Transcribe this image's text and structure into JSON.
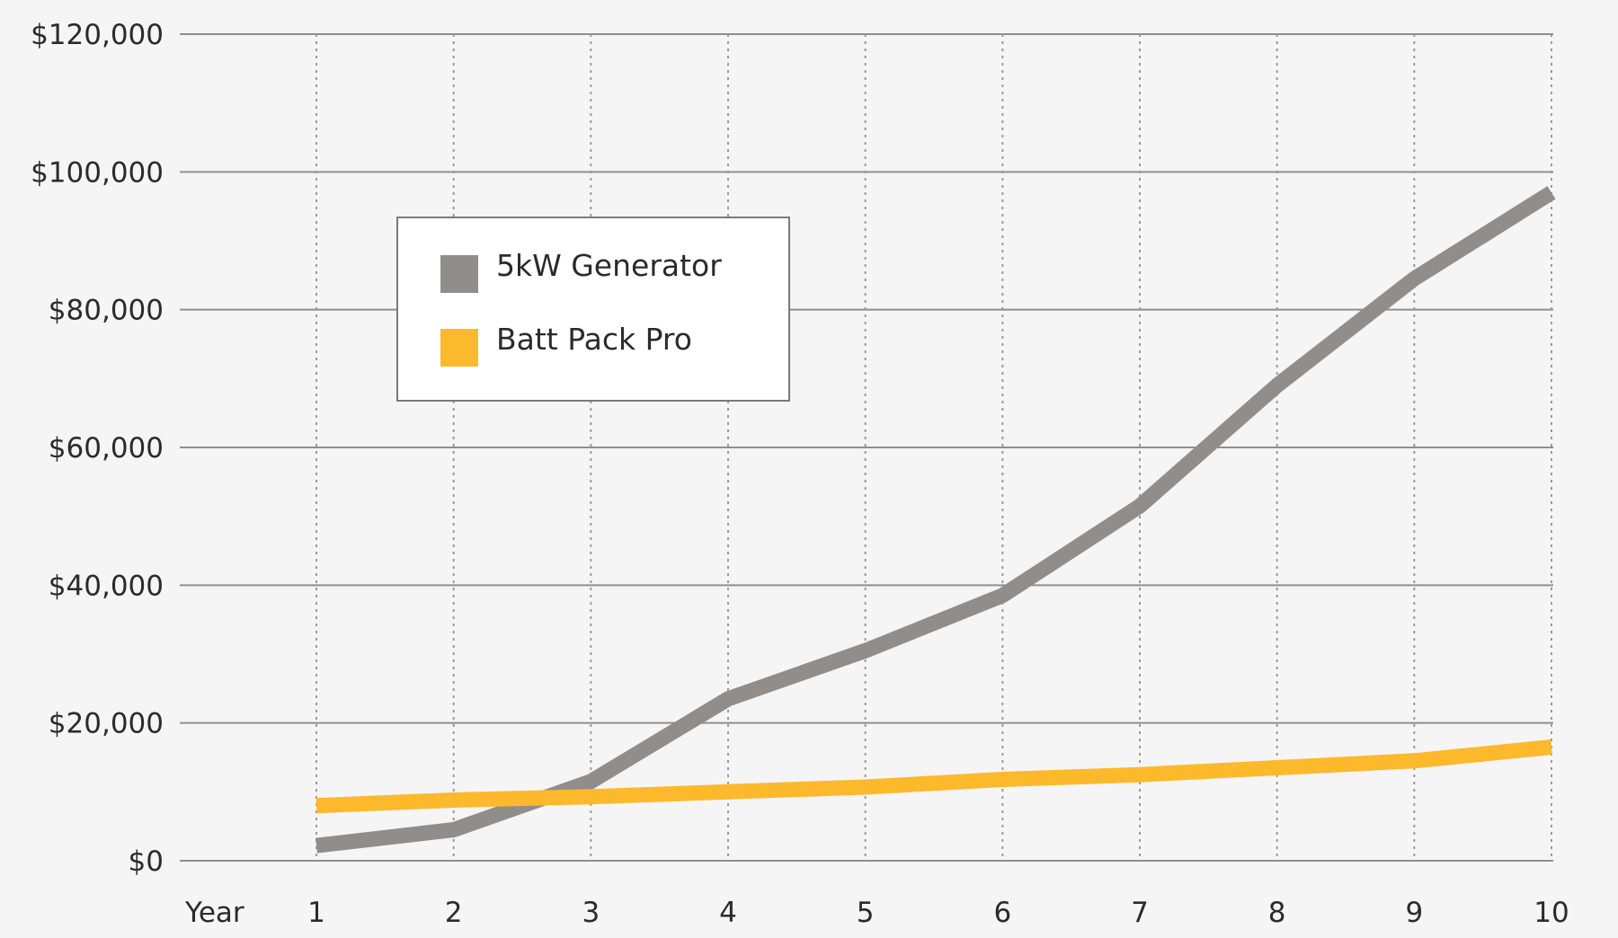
{
  "chart_data": {
    "type": "line",
    "x": [
      1,
      2,
      3,
      4,
      5,
      6,
      7,
      8,
      9,
      10
    ],
    "x_axis_label": "Year",
    "ylim": [
      0,
      120000
    ],
    "y_ticks": [
      0,
      20000,
      40000,
      60000,
      80000,
      100000,
      120000
    ],
    "y_tick_labels": [
      "$0",
      "$20,000",
      "$40,000",
      "$60,000",
      "$80,000",
      "$100,000",
      "$120,000"
    ],
    "grid": {
      "horizontal": "solid",
      "vertical": "dotted"
    },
    "legend_position": "upper-left",
    "series": [
      {
        "name": "5kW Generator",
        "color": "#918d8b",
        "values": [
          2200,
          4500,
          11500,
          23500,
          30500,
          38500,
          51500,
          69000,
          84500,
          97000
        ]
      },
      {
        "name": "Batt Pack Pro",
        "color": "#fdb92c",
        "values": [
          8000,
          8800,
          9300,
          10000,
          10700,
          11800,
          12500,
          13500,
          14500,
          16500
        ]
      }
    ]
  }
}
